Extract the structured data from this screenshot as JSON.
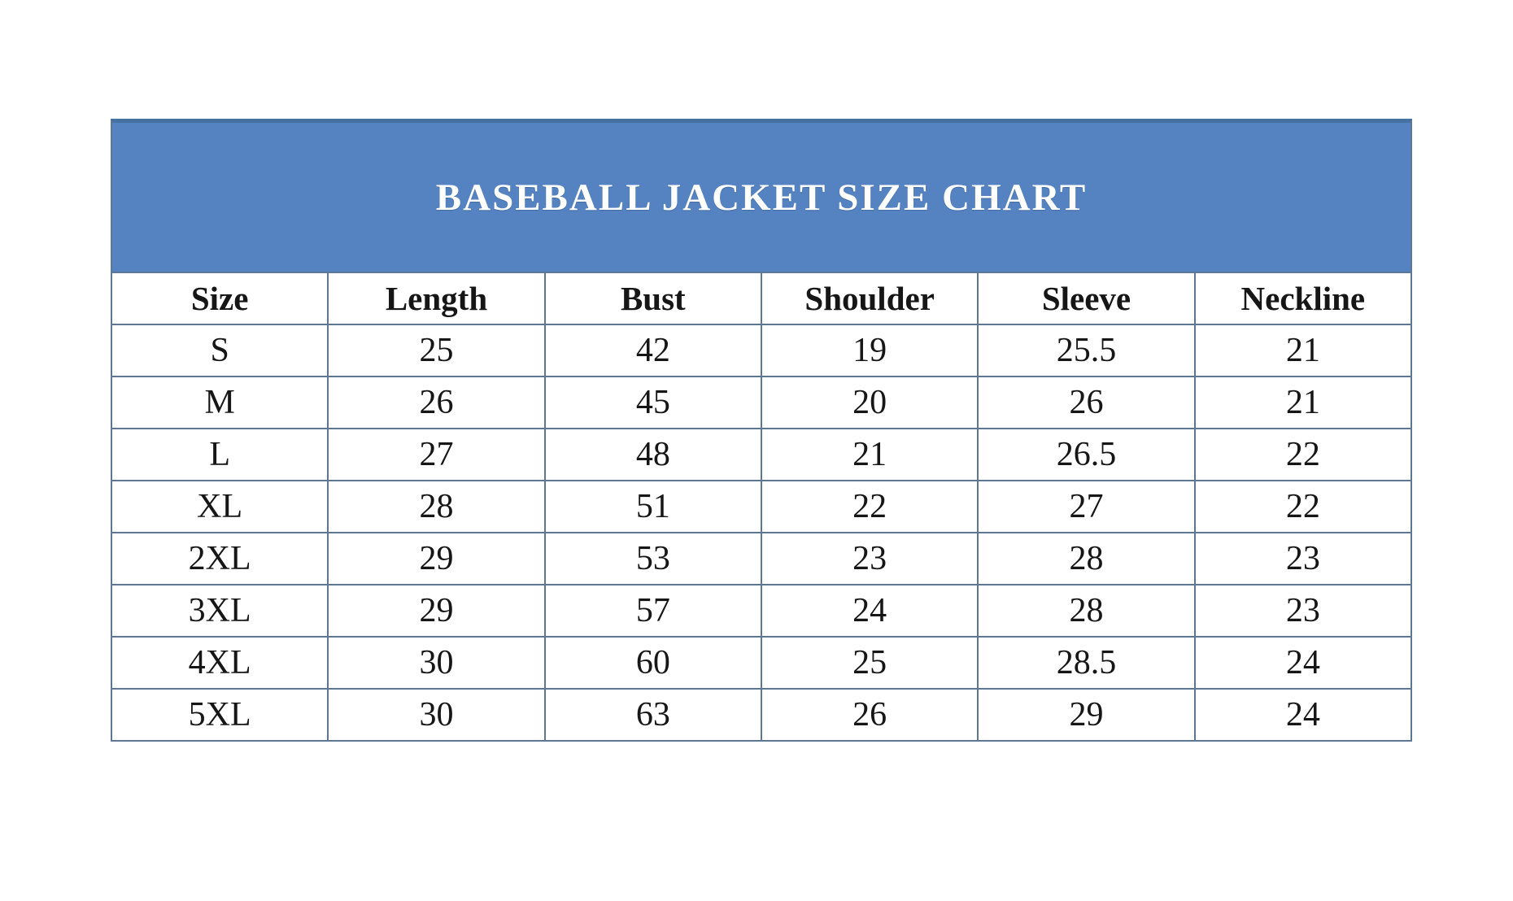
{
  "title": "BASEBALL JACKET SIZE CHART",
  "colors": {
    "band_blue": "#5583c1",
    "band_top_line": "#44719f",
    "table_border": "#5d7795",
    "title_text": "#ffffff",
    "cell_text": "#161616",
    "background": "#ffffff"
  },
  "chart_data": {
    "type": "table",
    "title": "BASEBALL JACKET SIZE CHART",
    "columns": [
      "Size",
      "Length",
      "Bust",
      "Shoulder",
      "Sleeve",
      "Neckline"
    ],
    "rows": [
      [
        "S",
        "25",
        "42",
        "19",
        "25.5",
        "21"
      ],
      [
        "M",
        "26",
        "45",
        "20",
        "26",
        "21"
      ],
      [
        "L",
        "27",
        "48",
        "21",
        "26.5",
        "22"
      ],
      [
        "XL",
        "28",
        "51",
        "22",
        "27",
        "22"
      ],
      [
        "2XL",
        "29",
        "53",
        "23",
        "28",
        "23"
      ],
      [
        "3XL",
        "29",
        "57",
        "24",
        "28",
        "23"
      ],
      [
        "4XL",
        "30",
        "60",
        "25",
        "28.5",
        "24"
      ],
      [
        "5XL",
        "30",
        "63",
        "26",
        "29",
        "24"
      ]
    ]
  }
}
